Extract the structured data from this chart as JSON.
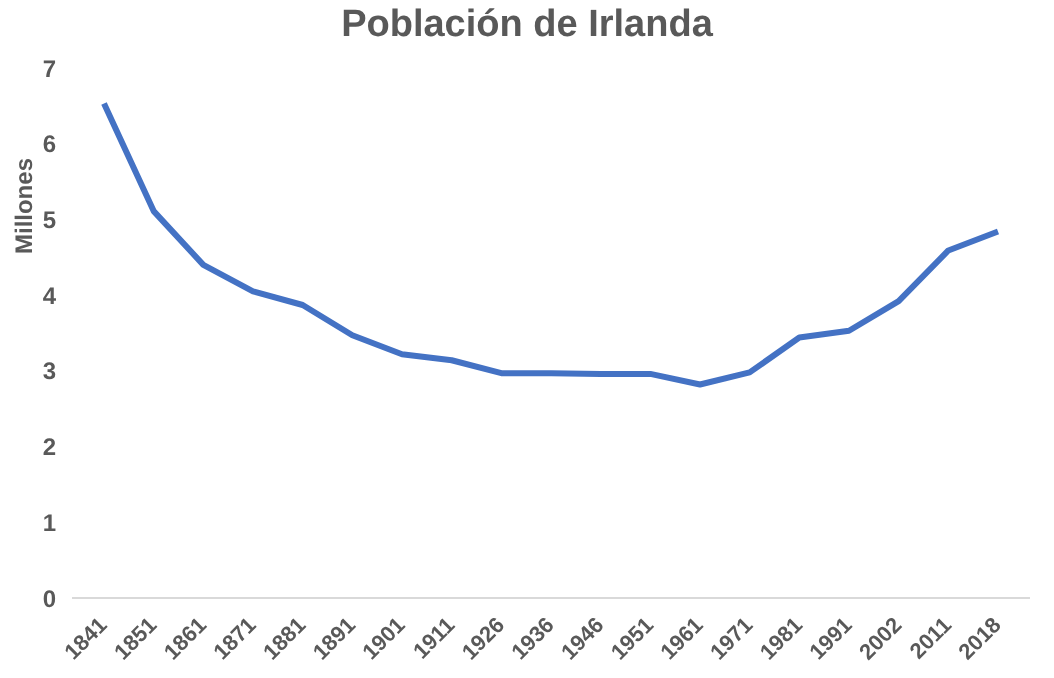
{
  "chart_data": {
    "type": "line",
    "title": "Población de Irlanda",
    "ylabel": "Millones",
    "categories": [
      "1841",
      "1851",
      "1861",
      "1871",
      "1881",
      "1891",
      "1901",
      "1911",
      "1926",
      "1936",
      "1946",
      "1951",
      "1961",
      "1971",
      "1981",
      "1991",
      "2002",
      "2011",
      "2018"
    ],
    "series": [
      {
        "color": "#4472c4",
        "values": [
          6.53,
          5.11,
          4.4,
          4.05,
          3.87,
          3.47,
          3.22,
          3.14,
          2.97,
          2.97,
          2.96,
          2.96,
          2.82,
          2.98,
          3.44,
          3.53,
          3.92,
          4.59,
          4.84
        ]
      }
    ],
    "ylim": [
      0,
      7
    ],
    "yticks": [
      0,
      1,
      2,
      3,
      4,
      5,
      6,
      7
    ],
    "grid": false,
    "legend": false,
    "marker": "none",
    "line_style": "solid"
  }
}
